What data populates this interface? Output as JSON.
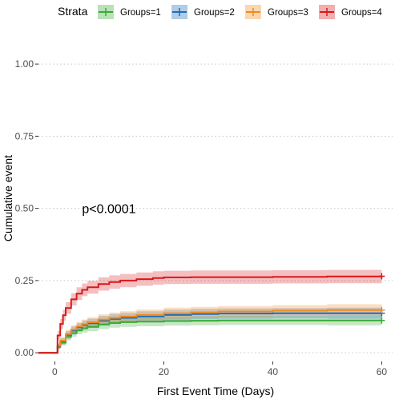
{
  "chart_data": {
    "type": "line",
    "title": "",
    "xlabel": "First Event Time (Days)",
    "ylabel": "Cumulative event",
    "xlim": [
      -3,
      62
    ],
    "ylim": [
      -0.03,
      1.1
    ],
    "x_ticks": [
      0,
      20,
      40,
      60
    ],
    "x_tick_labels": [
      "0",
      "20",
      "40",
      "60"
    ],
    "y_ticks": [
      0,
      0.25,
      0.5,
      0.75,
      1.0
    ],
    "y_tick_labels": [
      "0.00",
      "0.25",
      "0.50",
      "0.75",
      "1.00"
    ],
    "grid": "horizontal dotted",
    "legend": {
      "title": "Strata",
      "position": "top"
    },
    "annotation": {
      "text": "p<0.0001",
      "x": 5,
      "y": 0.5
    },
    "series": [
      {
        "name": "Groups=1",
        "color": "#3aaa35",
        "x": [
          -3,
          0,
          0.5,
          1,
          2,
          3,
          4,
          5,
          6,
          8,
          10,
          12,
          15,
          20,
          25,
          30,
          40,
          50,
          60
        ],
        "y": [
          0,
          0,
          0.02,
          0.035,
          0.055,
          0.068,
          0.078,
          0.085,
          0.09,
          0.098,
          0.103,
          0.106,
          0.108,
          0.11,
          0.111,
          0.112,
          0.112,
          0.112,
          0.112
        ],
        "lower": [
          0,
          0,
          0.012,
          0.025,
          0.043,
          0.055,
          0.064,
          0.07,
          0.075,
          0.082,
          0.087,
          0.09,
          0.092,
          0.094,
          0.095,
          0.096,
          0.096,
          0.095,
          0.093
        ],
        "upper": [
          0,
          0,
          0.028,
          0.045,
          0.067,
          0.081,
          0.092,
          0.1,
          0.105,
          0.114,
          0.119,
          0.122,
          0.124,
          0.126,
          0.127,
          0.128,
          0.128,
          0.129,
          0.131
        ]
      },
      {
        "name": "Groups=2",
        "color": "#1f6eb5",
        "x": [
          -3,
          0,
          0.5,
          1,
          2,
          3,
          4,
          5,
          6,
          8,
          10,
          12,
          15,
          20,
          25,
          30,
          40,
          50,
          60
        ],
        "y": [
          0,
          0,
          0.022,
          0.04,
          0.062,
          0.077,
          0.088,
          0.096,
          0.102,
          0.111,
          0.117,
          0.121,
          0.126,
          0.131,
          0.134,
          0.136,
          0.137,
          0.137,
          0.137
        ],
        "lower": [
          0,
          0,
          0.014,
          0.029,
          0.049,
          0.063,
          0.073,
          0.08,
          0.086,
          0.094,
          0.1,
          0.104,
          0.108,
          0.113,
          0.116,
          0.118,
          0.119,
          0.118,
          0.116
        ],
        "upper": [
          0,
          0,
          0.03,
          0.051,
          0.075,
          0.091,
          0.103,
          0.112,
          0.118,
          0.128,
          0.134,
          0.138,
          0.144,
          0.149,
          0.152,
          0.154,
          0.155,
          0.156,
          0.158
        ]
      },
      {
        "name": "Groups=3",
        "color": "#f28a1f",
        "x": [
          -3,
          0,
          0.5,
          1,
          2,
          3,
          4,
          5,
          6,
          8,
          10,
          12,
          15,
          20,
          25,
          30,
          40,
          50,
          60
        ],
        "y": [
          0,
          0,
          0.024,
          0.042,
          0.065,
          0.08,
          0.091,
          0.099,
          0.106,
          0.115,
          0.121,
          0.126,
          0.131,
          0.137,
          0.14,
          0.143,
          0.146,
          0.148,
          0.148
        ],
        "lower": [
          0,
          0,
          0.015,
          0.03,
          0.051,
          0.065,
          0.075,
          0.083,
          0.089,
          0.097,
          0.103,
          0.108,
          0.112,
          0.118,
          0.121,
          0.124,
          0.127,
          0.128,
          0.127
        ],
        "upper": [
          0,
          0,
          0.033,
          0.054,
          0.079,
          0.095,
          0.107,
          0.115,
          0.123,
          0.133,
          0.139,
          0.144,
          0.15,
          0.156,
          0.159,
          0.162,
          0.165,
          0.168,
          0.169
        ]
      },
      {
        "name": "Groups=4",
        "color": "#d7191c",
        "x": [
          -3,
          0,
          0.5,
          1,
          1.5,
          2,
          3,
          4,
          5,
          6,
          8,
          10,
          12,
          15,
          18,
          20,
          25,
          30,
          40,
          50,
          60
        ],
        "y": [
          0,
          0,
          0.06,
          0.1,
          0.13,
          0.155,
          0.185,
          0.205,
          0.218,
          0.227,
          0.238,
          0.245,
          0.25,
          0.255,
          0.259,
          0.261,
          0.262,
          0.262,
          0.263,
          0.264,
          0.265
        ],
        "lower": [
          0,
          0,
          0.045,
          0.083,
          0.111,
          0.135,
          0.164,
          0.183,
          0.196,
          0.205,
          0.215,
          0.222,
          0.227,
          0.232,
          0.236,
          0.238,
          0.239,
          0.239,
          0.24,
          0.241,
          0.242
        ],
        "upper": [
          0,
          0,
          0.075,
          0.117,
          0.149,
          0.175,
          0.206,
          0.227,
          0.24,
          0.249,
          0.261,
          0.268,
          0.273,
          0.278,
          0.282,
          0.284,
          0.285,
          0.285,
          0.286,
          0.287,
          0.288
        ]
      }
    ]
  }
}
